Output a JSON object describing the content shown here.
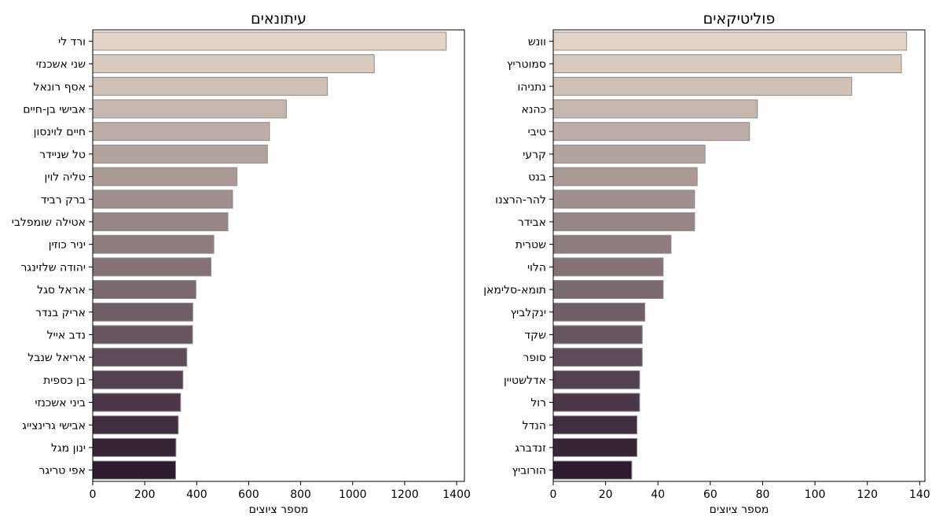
{
  "figure": {
    "colors": {
      "bar_start": "#e3d4c6",
      "bar_end": "#2e1a2f",
      "bar_edge": "#8f8a8a",
      "axis": "#000000"
    }
  },
  "chart_data": [
    {
      "type": "bar",
      "orientation": "horizontal",
      "title": "עיתונאים",
      "xlabel": "מספר ציוצים",
      "ylabel": "",
      "xlim": [
        0,
        1430
      ],
      "xticks": [
        0,
        200,
        400,
        600,
        800,
        1000,
        1200,
        1400
      ],
      "xtick_labels": [
        "0",
        "200",
        "400",
        "600",
        "800",
        "1000",
        "1200",
        "1400"
      ],
      "grid": false,
      "categories": [
        "ורד לי",
        "שני אשכנזי",
        "אסף רונאל",
        "אבישי בן-חיים",
        "חיים לוינסון",
        "טל שניידר",
        "טליה לוין",
        "ברק רביד",
        "אטילה שומפלבי",
        "יניר כוזין",
        "יהודה שלזינגר",
        "אראל סגל",
        "אריק בנדר",
        "נדב אייל",
        "אריאל שנבל",
        "בן כספית",
        "ביני אשכנזי",
        "אבישי גרינצייג",
        "ינון מגל",
        "אפי טריגר"
      ],
      "values": [
        1360,
        1083,
        903,
        745,
        680,
        672,
        555,
        538,
        520,
        466,
        455,
        397,
        385,
        384,
        362,
        347,
        338,
        329,
        320,
        319
      ]
    },
    {
      "type": "bar",
      "orientation": "horizontal",
      "title": "פוליטיקאים",
      "xlabel": "מספר ציוצים",
      "ylabel": "",
      "xlim": [
        0,
        142
      ],
      "xticks": [
        0,
        20,
        40,
        60,
        80,
        100,
        120,
        140
      ],
      "xtick_labels": [
        "0",
        "20",
        "40",
        "60",
        "80",
        "100",
        "120",
        "140"
      ],
      "grid": false,
      "categories": [
        "וונש",
        "סמוטריץ",
        "נתניהו",
        "כהנא",
        "טיבי",
        "קרעי",
        "בנט",
        "להר-הרצנו",
        "אבידר",
        "שטרית",
        "הלוי",
        "תומא-סלימאן",
        "ינקלביץ",
        "שקד",
        "סופר",
        "אדלשטיין",
        "רול",
        "הנדל",
        "זנדברג",
        "הורוביץ"
      ],
      "values": [
        135,
        133,
        114,
        78,
        75,
        58,
        55,
        54,
        54,
        45,
        42,
        42,
        35,
        34,
        34,
        33,
        33,
        32,
        32,
        30
      ]
    }
  ]
}
